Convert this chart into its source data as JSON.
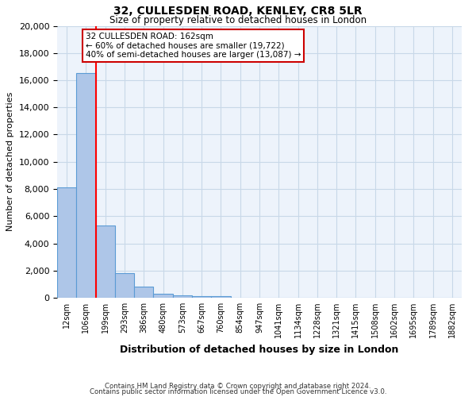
{
  "title_line1": "32, CULLESDEN ROAD, KENLEY, CR8 5LR",
  "title_line2": "Size of property relative to detached houses in London",
  "xlabel": "Distribution of detached houses by size in London",
  "ylabel": "Number of detached properties",
  "bar_labels": [
    "12sqm",
    "106sqm",
    "199sqm",
    "293sqm",
    "386sqm",
    "480sqm",
    "573sqm",
    "667sqm",
    "760sqm",
    "854sqm",
    "947sqm",
    "1041sqm",
    "1134sqm",
    "1228sqm",
    "1321sqm",
    "1415sqm",
    "1508sqm",
    "1602sqm",
    "1695sqm",
    "1789sqm",
    "1882sqm"
  ],
  "bar_heights": [
    8100,
    16500,
    5300,
    1800,
    800,
    300,
    200,
    100,
    100,
    0,
    0,
    0,
    0,
    0,
    0,
    0,
    0,
    0,
    0,
    0,
    0
  ],
  "bar_color": "#aec6e8",
  "bar_edge_color": "#5b9bd5",
  "property_line_color": "#ff0000",
  "annotation_line1": "32 CULLESDEN ROAD: 162sqm",
  "annotation_line2": "← 60% of detached houses are smaller (19,722)",
  "annotation_line3": "40% of semi-detached houses are larger (13,087) →",
  "ylim": [
    0,
    20000
  ],
  "yticks": [
    0,
    2000,
    4000,
    6000,
    8000,
    10000,
    12000,
    14000,
    16000,
    18000,
    20000
  ],
  "footer_line1": "Contains HM Land Registry data © Crown copyright and database right 2024.",
  "footer_line2": "Contains public sector information licensed under the Open Government Licence v3.0.",
  "background_color": "#ffffff",
  "plot_bg_color": "#edf3fb",
  "grid_color": "#c8d8e8",
  "fig_width": 6.0,
  "fig_height": 5.0
}
